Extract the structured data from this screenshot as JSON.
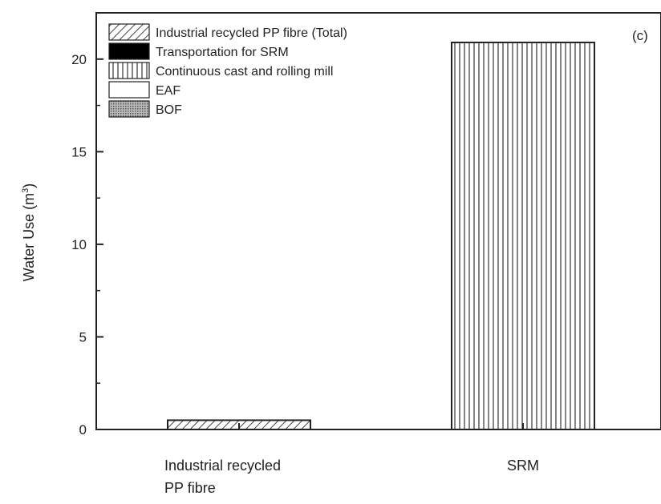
{
  "chart_data": {
    "type": "bar",
    "panel_label": "(c)",
    "ylabel": "Water Use (m",
    "ylabel_sup": "3",
    "ylabel_close": ")",
    "ylim": [
      0,
      22.5
    ],
    "yticks": [
      0,
      5,
      10,
      15,
      20
    ],
    "categories": [
      {
        "lines": [
          "Industrial recycled",
          "PP fibre"
        ]
      },
      {
        "lines": [
          "SRM"
        ]
      }
    ],
    "series": [
      {
        "name": "Industrial recycled PP fibre (Total)",
        "pattern": "diagonal",
        "values": [
          0.5,
          0
        ]
      },
      {
        "name": "Transportation for SRM",
        "pattern": "solid-black",
        "values": [
          0,
          0
        ]
      },
      {
        "name": "Continuous cast and rolling mill",
        "pattern": "vertical",
        "values": [
          0,
          20.9
        ]
      },
      {
        "name": "EAF",
        "pattern": "blank",
        "values": [
          0,
          0
        ]
      },
      {
        "name": "BOF",
        "pattern": "dots",
        "values": [
          0,
          0
        ]
      }
    ],
    "grid": false,
    "legend_position": "top-left"
  }
}
